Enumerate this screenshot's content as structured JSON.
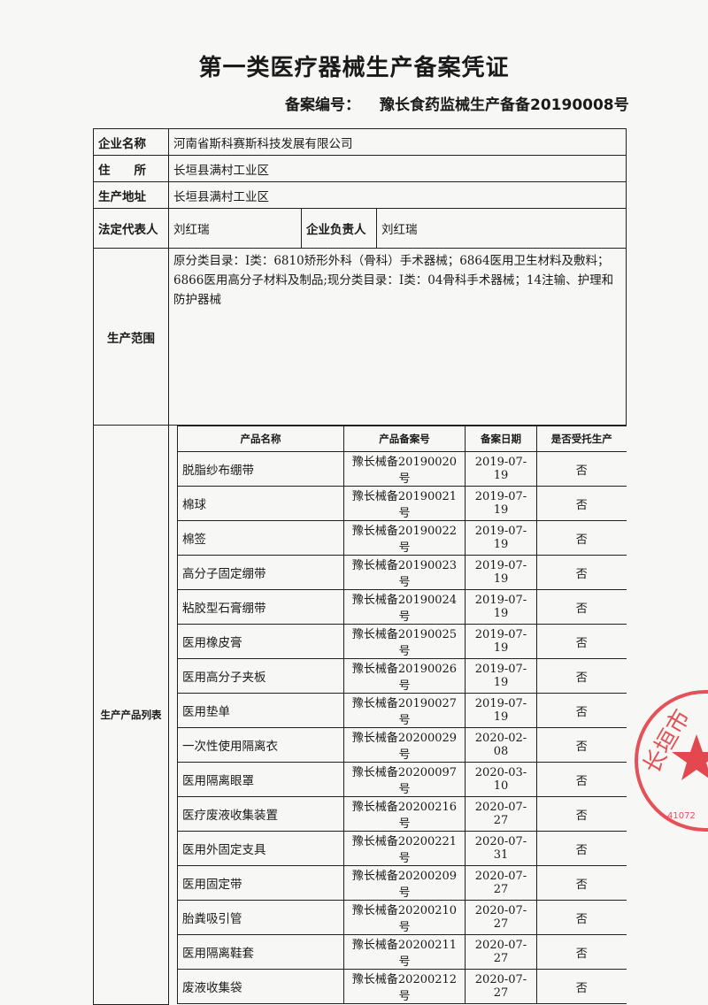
{
  "title": "第一类医疗器械生产备案凭证",
  "record_number": {
    "label": "备案编号：",
    "value": "豫长食药监械生产备备20190008号"
  },
  "company": {
    "name_label": "企业名称",
    "name": "河南省斯科赛斯科技发展有限公司",
    "address_label": "住　　所",
    "address": "长垣县满村工业区",
    "production_address_label": "生产地址",
    "production_address": "长垣县满村工业区",
    "legal_rep_label": "法定代表人",
    "legal_rep": "刘红瑞",
    "manager_label": "企业负责人",
    "manager": "刘红瑞",
    "scope_label": "生产范围",
    "scope": "原分类目录：Ⅰ类：6810矫形外科（骨科）手术器械；6864医用卫生材料及敷料；6866医用高分子材料及制品;现分类目录：Ⅰ类：04骨科手术器械；14注输、护理和防护器械"
  },
  "products": {
    "section_label": "生产产品列表",
    "headers": [
      "产品名称",
      "产品备案号",
      "备案日期",
      "是否受托生产"
    ],
    "rows": [
      [
        "脱脂纱布绷带",
        "豫长械备20190020号",
        "2019-07-19",
        "否"
      ],
      [
        "棉球",
        "豫长械备20190021号",
        "2019-07-19",
        "否"
      ],
      [
        "棉签",
        "豫长械备20190022号",
        "2019-07-19",
        "否"
      ],
      [
        "高分子固定绷带",
        "豫长械备20190023号",
        "2019-07-19",
        "否"
      ],
      [
        "粘胶型石膏绷带",
        "豫长械备20190024号",
        "2019-07-19",
        "否"
      ],
      [
        "医用橡皮膏",
        "豫长械备20190025号",
        "2019-07-19",
        "否"
      ],
      [
        "医用高分子夹板",
        "豫长械备20190026号",
        "2019-07-19",
        "否"
      ],
      [
        "医用垫单",
        "豫长械备20190027号",
        "2019-07-19",
        "否"
      ],
      [
        "一次性使用隔离衣",
        "豫长械备20200029号",
        "2020-02-08",
        "否"
      ],
      [
        "医用隔离眼罩",
        "豫长械备20200097号",
        "2020-03-10",
        "否"
      ],
      [
        "医疗废液收集装置",
        "豫长械备20200216号",
        "2020-07-27",
        "否"
      ],
      [
        "医用外固定支具",
        "豫长械备20200221号",
        "2020-07-31",
        "否"
      ],
      [
        "医用固定带",
        "豫长械备20200209号",
        "2020-07-27",
        "否"
      ],
      [
        "胎粪吸引管",
        "豫长械备20200210号",
        "2020-07-27",
        "否"
      ],
      [
        "医用隔离鞋套",
        "豫长械备20200211号",
        "2020-07-27",
        "否"
      ],
      [
        "废液收集袋",
        "豫长械备20200212号",
        "2020-07-27",
        "否"
      ]
    ]
  },
  "seal": {
    "text": "长垣市市场监",
    "code": "41072",
    "color": "#e0343c"
  }
}
